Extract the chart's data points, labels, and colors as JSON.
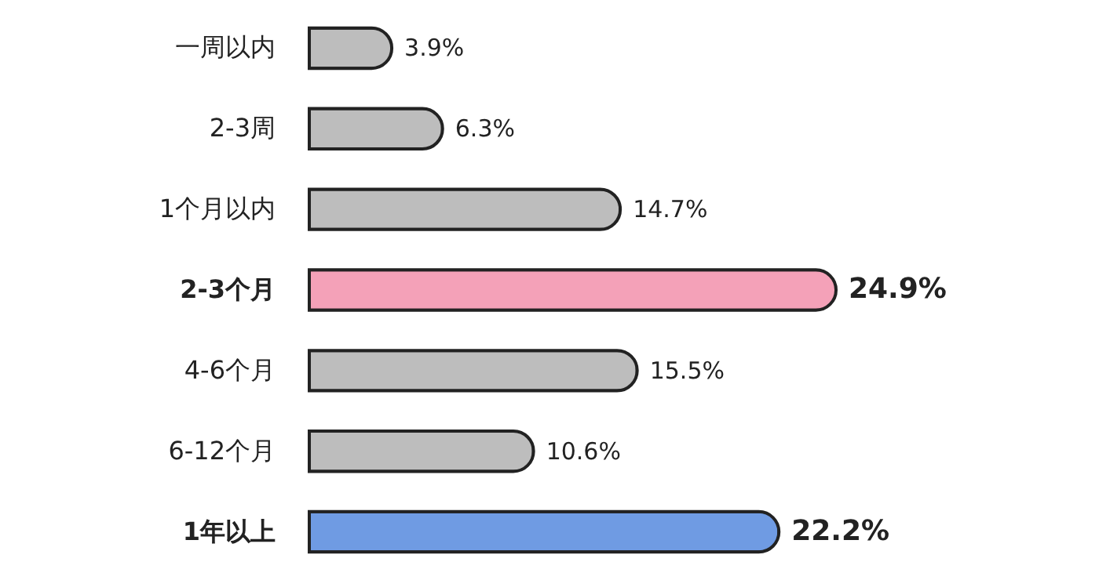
{
  "chart_data": {
    "type": "bar",
    "orientation": "horizontal",
    "categories": [
      "一周以内",
      "2-3周",
      "1个月以内",
      "2-3个月",
      "4-6个月",
      "6-12个月",
      "1年以上"
    ],
    "values": [
      3.9,
      6.3,
      14.7,
      24.9,
      15.5,
      10.6,
      22.2
    ],
    "value_labels": [
      "3.9%",
      "6.3%",
      "14.7%",
      "24.9%",
      "15.5%",
      "10.6%",
      "22.2%"
    ],
    "colors": [
      "#bdbdbd",
      "#bdbdbd",
      "#bdbdbd",
      "#f4a1b8",
      "#bdbdbd",
      "#bdbdbd",
      "#6f9be3"
    ]
  }
}
